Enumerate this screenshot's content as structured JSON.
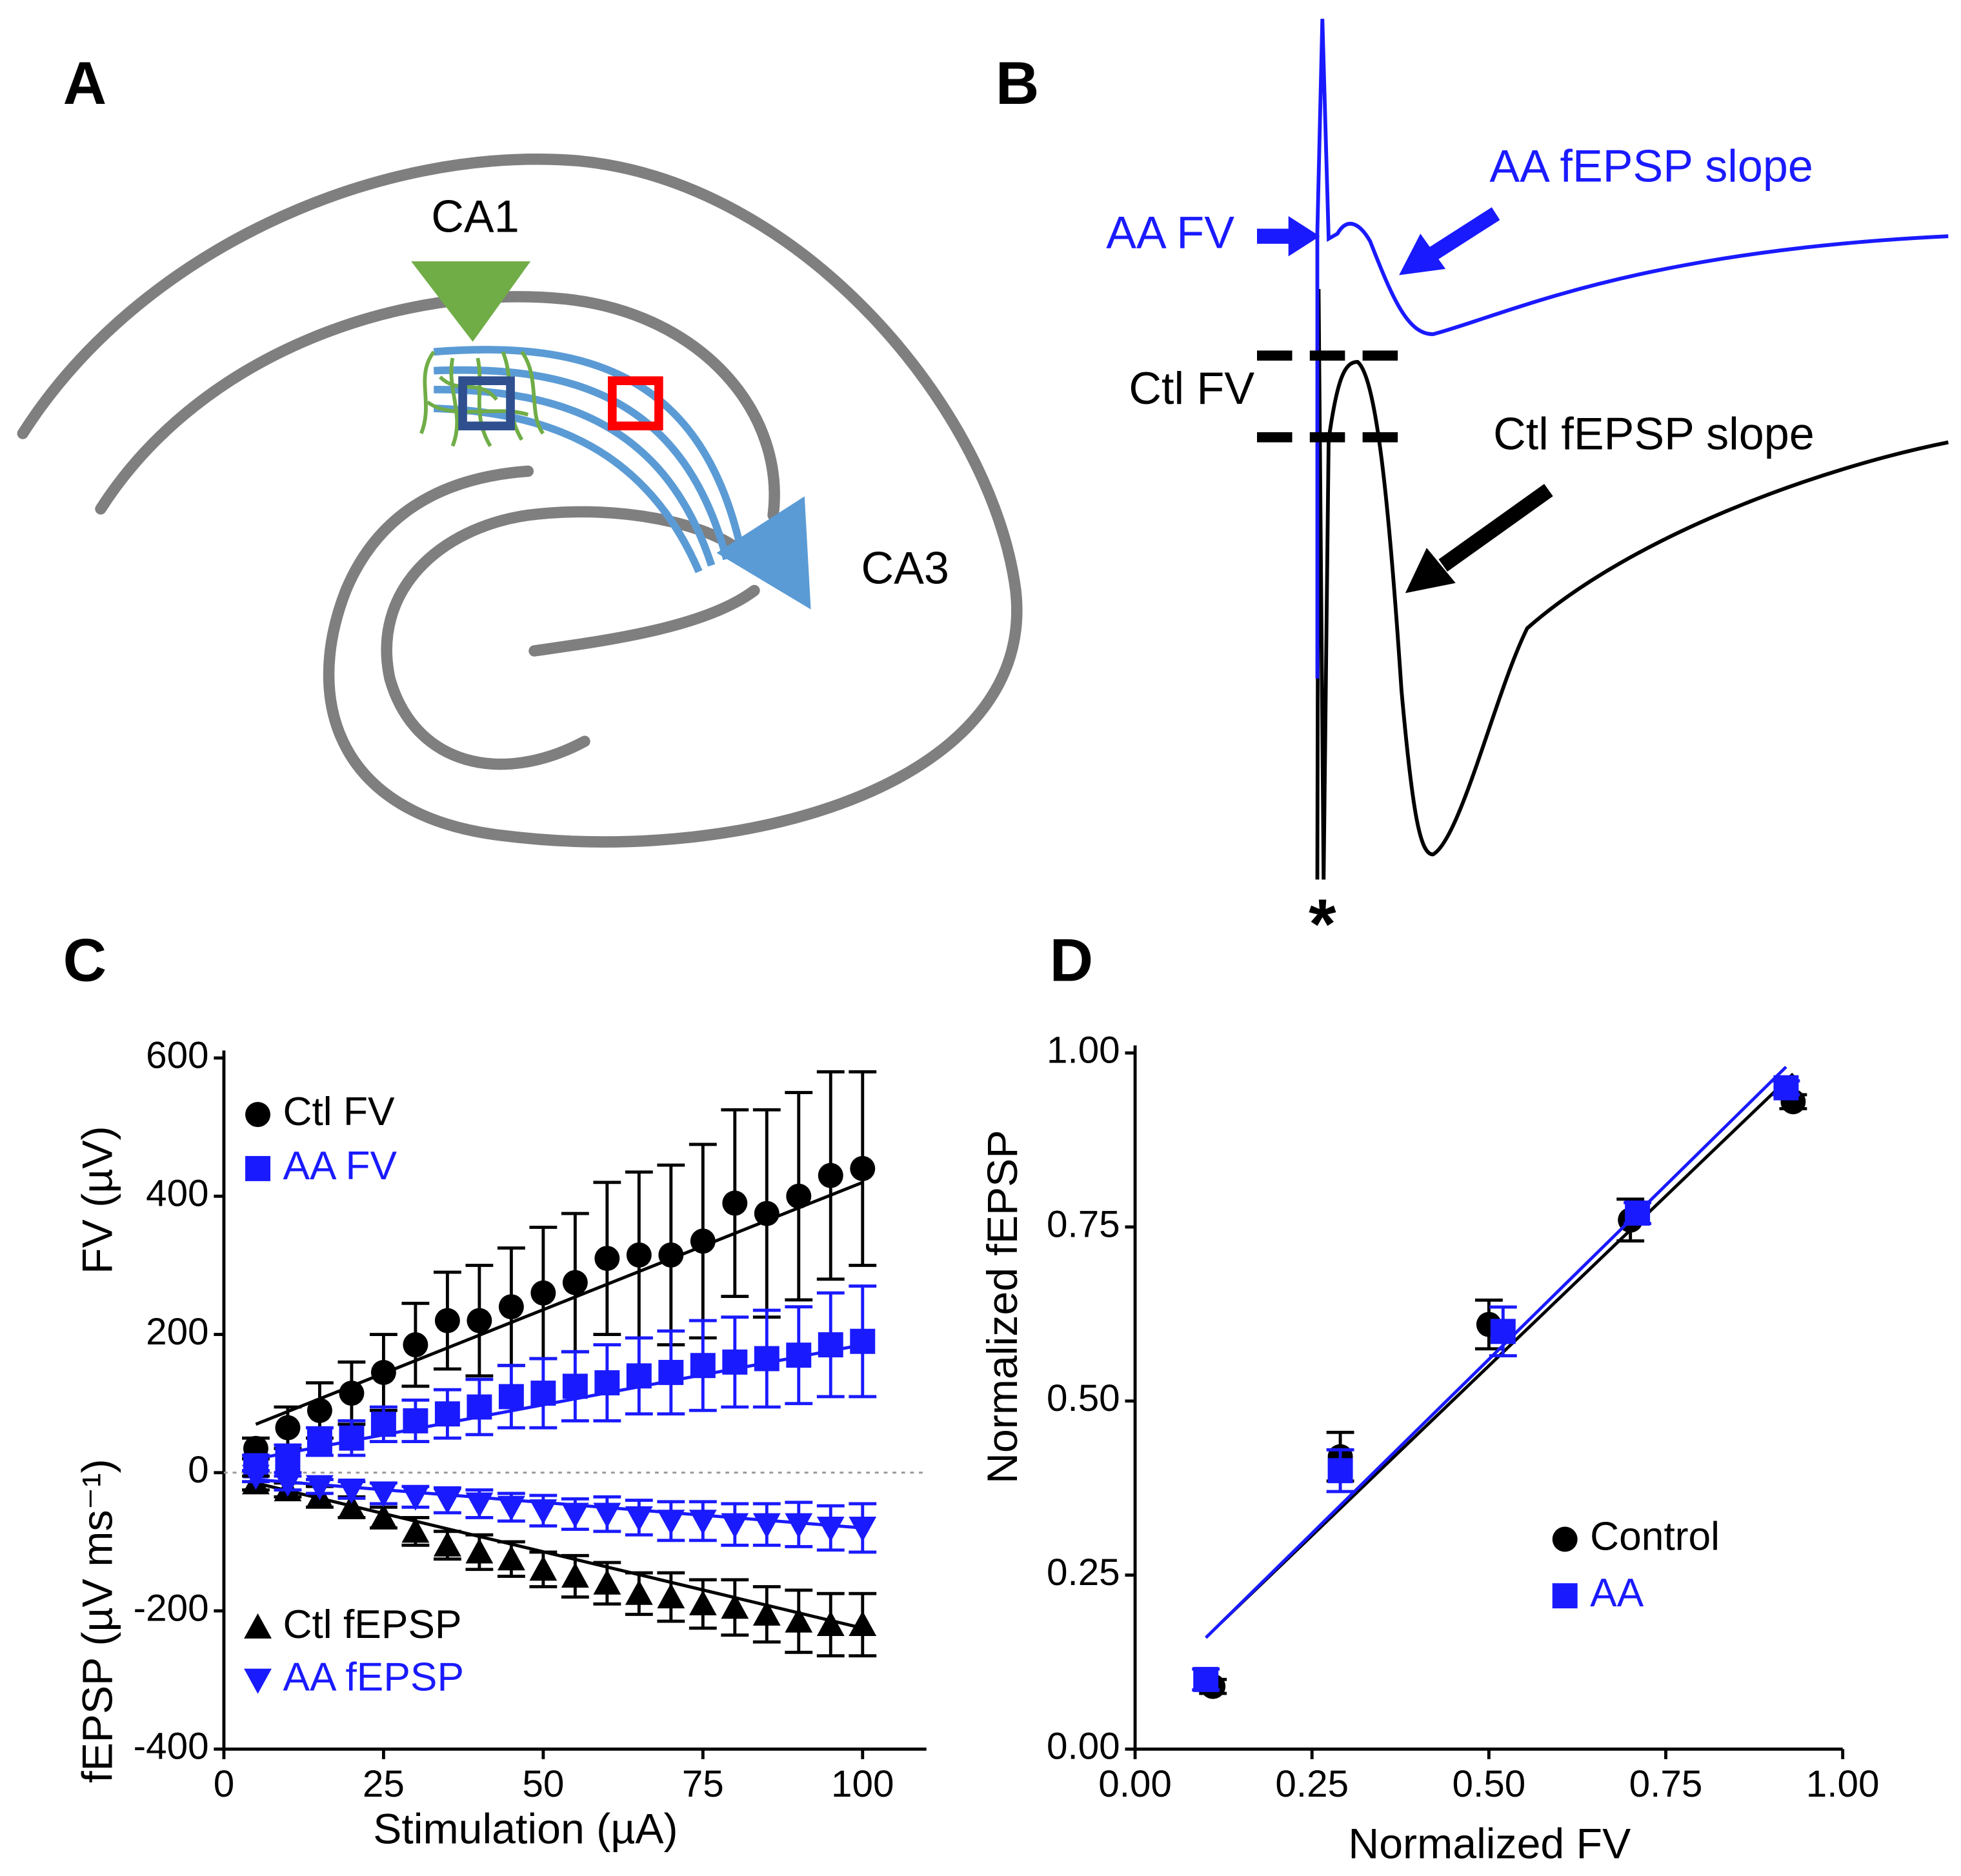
{
  "panels": {
    "labels": [
      "A",
      "B",
      "C",
      "D"
    ],
    "a": {
      "labels": [
        "CA1",
        "CA3"
      ]
    },
    "b": {
      "labels": [
        "AA FV",
        "AA fEPSP slope",
        "Ctl FV",
        "Ctl fEPSP slope",
        "*"
      ]
    }
  },
  "chart_data": [
    {
      "type": "scatter",
      "xlabel": "Stimulation (µA)",
      "ylabel": "FV  (µV)",
      "ylabel2": "fEPSP (µV ms⁻¹)",
      "x": [
        5,
        10,
        15,
        20,
        25,
        30,
        35,
        40,
        45,
        50,
        55,
        60,
        65,
        70,
        75,
        80,
        85,
        90,
        95,
        100
      ],
      "xlim": [
        0,
        110
      ],
      "xticks": [
        0,
        25,
        50,
        75,
        100
      ],
      "ylim": [
        -400,
        600
      ],
      "yticks": [
        -400,
        -200,
        0,
        200,
        400,
        600
      ],
      "series": [
        {
          "name": "Ctl FV",
          "color": "#000000",
          "marker": "circle",
          "values": [
            35,
            65,
            90,
            115,
            145,
            185,
            220,
            220,
            240,
            260,
            275,
            310,
            315,
            315,
            335,
            390,
            375,
            400,
            430,
            440
          ],
          "errors": [
            15,
            30,
            40,
            45,
            55,
            60,
            70,
            80,
            85,
            95,
            100,
            110,
            120,
            130,
            140,
            135,
            150,
            150,
            150,
            140
          ],
          "fit": {
            "x": [
              5,
              100
            ],
            "y": [
              70,
              420
            ]
          }
        },
        {
          "name": "AA FV",
          "color": "#1a1aff",
          "marker": "square",
          "values": [
            10,
            20,
            45,
            50,
            70,
            75,
            85,
            95,
            110,
            115,
            125,
            130,
            140,
            145,
            155,
            160,
            165,
            170,
            185,
            190
          ],
          "errors": [
            15,
            20,
            20,
            25,
            25,
            30,
            35,
            40,
            45,
            50,
            50,
            55,
            55,
            60,
            65,
            65,
            70,
            70,
            75,
            80
          ],
          "fit": {
            "x": [
              5,
              100
            ],
            "y": [
              20,
              185
            ]
          }
        },
        {
          "name": "Ctl fEPSP",
          "color": "#000000",
          "marker": "triangle-up",
          "values": [
            -15,
            -25,
            -35,
            -50,
            -65,
            -85,
            -105,
            -115,
            -125,
            -140,
            -150,
            -160,
            -175,
            -180,
            -190,
            -195,
            -205,
            -215,
            -220,
            -220
          ],
          "errors": [
            10,
            10,
            15,
            15,
            15,
            20,
            20,
            25,
            25,
            25,
            30,
            30,
            30,
            35,
            35,
            40,
            40,
            45,
            45,
            45
          ],
          "fit": {
            "x": [
              5,
              100
            ],
            "y": [
              -15,
              -225
            ]
          }
        },
        {
          "name": "AA fEPSP",
          "color": "#1a1aff",
          "marker": "triangle-down",
          "values": [
            -5,
            -15,
            -20,
            -25,
            -30,
            -35,
            -40,
            -45,
            -50,
            -55,
            -60,
            -60,
            -65,
            -70,
            -70,
            -75,
            -75,
            -75,
            -80,
            -80
          ],
          "errors": [
            8,
            10,
            10,
            12,
            15,
            15,
            18,
            20,
            20,
            22,
            22,
            25,
            25,
            28,
            28,
            30,
            30,
            32,
            32,
            35
          ],
          "fit": {
            "x": [
              5,
              100
            ],
            "y": [
              -10,
              -80
            ]
          }
        }
      ]
    },
    {
      "type": "scatter",
      "xlabel": "Normalized FV",
      "ylabel": "Normalized fEPSP",
      "xlim": [
        0,
        1
      ],
      "xticks": [
        {
          "value": 0,
          "label": "0.00"
        },
        {
          "value": 0.25,
          "label": "0.25"
        },
        {
          "value": 0.5,
          "label": "0.50"
        },
        {
          "value": 0.75,
          "label": "0.75"
        },
        {
          "value": 1,
          "label": "1.00"
        }
      ],
      "ylim": [
        0,
        1
      ],
      "yticks": [
        {
          "value": 0,
          "label": "0.00"
        },
        {
          "value": 0.25,
          "label": "0.25"
        },
        {
          "value": 0.5,
          "label": "0.50"
        },
        {
          "value": 0.75,
          "label": "0.75"
        },
        {
          "value": 1,
          "label": "1.00"
        }
      ],
      "series": [
        {
          "name": "Control",
          "color": "#000000",
          "marker": "circle",
          "x": [
            0.11,
            0.29,
            0.5,
            0.7,
            0.93
          ],
          "values": [
            0.09,
            0.42,
            0.61,
            0.76,
            0.93
          ],
          "errors": [
            0.01,
            0.035,
            0.035,
            0.03,
            0.01
          ],
          "fit": {
            "x": [
              0.12,
              0.93
            ],
            "y": [
              0.18,
              0.97
            ]
          }
        },
        {
          "name": "AA",
          "color": "#1a1aff",
          "marker": "square",
          "x": [
            0.1,
            0.29,
            0.52,
            0.71,
            0.92
          ],
          "values": [
            0.1,
            0.4,
            0.6,
            0.77,
            0.95
          ],
          "errors": [
            0.015,
            0.03,
            0.035,
            0.015,
            0.01
          ],
          "fit": {
            "x": [
              0.1,
              0.92
            ],
            "y": [
              0.16,
              0.98
            ]
          }
        }
      ]
    }
  ]
}
